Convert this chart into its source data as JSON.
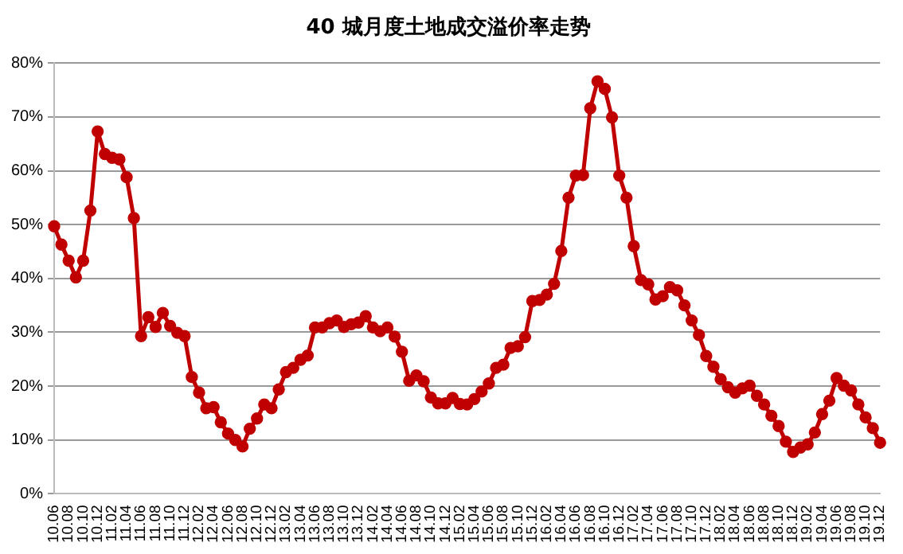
{
  "chart_data": {
    "type": "line",
    "title": "40 城月度土地成交溢价率走势",
    "categories": [
      "10.06",
      null,
      "10.08",
      null,
      "10.10",
      null,
      "10.12",
      null,
      "11.02",
      null,
      "11.04",
      null,
      "11.06",
      null,
      "11.08",
      null,
      "11.10",
      null,
      "11.12",
      null,
      "12.02",
      null,
      "12.04",
      null,
      "12.06",
      null,
      "12.08",
      null,
      "12.10",
      null,
      "12.12",
      null,
      "13.02",
      null,
      "13.04",
      null,
      "13.06",
      null,
      "13.08",
      null,
      "13.10",
      null,
      "13.12",
      null,
      "14.02",
      null,
      "14.04",
      null,
      "14.06",
      null,
      "14.08",
      null,
      "14.10",
      null,
      "14.12",
      null,
      "15.02",
      null,
      "15.04",
      null,
      "15.06",
      null,
      "15.08",
      null,
      "15.10",
      null,
      "15.12",
      null,
      "16.02",
      null,
      "16.04",
      null,
      "16.06",
      null,
      "16.08",
      null,
      "16.10",
      null,
      "16.12",
      null,
      "17.02",
      null,
      "17.04",
      null,
      "17.06",
      null,
      "17.08",
      null,
      "17.10",
      null,
      "17.12",
      null,
      "18.02",
      null,
      "18.04",
      null,
      "18.06",
      null,
      "18.08",
      null,
      "18.10",
      null,
      "18.12",
      null,
      "19.02",
      null,
      "19.04",
      null,
      "19.06",
      null,
      "19.08",
      null,
      "19.10",
      null,
      "19.12"
    ],
    "series": [
      {
        "color": "#c00000",
        "values": [
          49.7,
          46.3,
          43.3,
          40.2,
          43.3,
          52.6,
          67.3,
          63.1,
          62.4,
          62.1,
          58.8,
          51.2,
          29.3,
          32.8,
          31.0,
          33.6,
          31.2,
          29.9,
          29.3,
          21.7,
          18.8,
          15.9,
          16.1,
          13.3,
          11.2,
          10.0,
          8.8,
          12.1,
          14.0,
          16.6,
          15.9,
          19.4,
          22.6,
          23.4,
          24.9,
          25.7,
          30.9,
          30.9,
          31.7,
          32.2,
          31.0,
          31.5,
          31.8,
          33.0,
          30.9,
          30.2,
          30.9,
          29.2,
          26.4,
          21.0,
          22.0,
          20.9,
          17.9,
          16.8,
          16.8,
          17.8,
          16.7,
          16.6,
          17.6,
          19.0,
          20.5,
          23.4,
          24.0,
          27.1,
          27.4,
          29.1,
          35.8,
          36.0,
          37.0,
          39.0,
          45.1,
          55.0,
          59.1,
          59.2,
          71.6,
          76.6,
          75.2,
          69.9,
          59.1,
          55.0,
          46.0,
          39.7,
          38.9,
          36.1,
          36.7,
          38.4,
          37.8,
          35.0,
          32.2,
          29.5,
          25.6,
          23.6,
          21.3,
          19.8,
          18.8,
          19.6,
          20.1,
          18.2,
          16.6,
          14.5,
          12.6,
          9.7,
          7.8,
          8.6,
          9.2,
          11.4,
          14.8,
          17.3,
          21.5,
          20.1,
          19.2,
          16.6,
          14.2,
          12.2,
          9.5
        ]
      }
    ],
    "ylim": [
      0,
      80
    ],
    "yticks": [
      {
        "value": 0,
        "label": "0%"
      },
      {
        "value": 10,
        "label": "10%"
      },
      {
        "value": 20,
        "label": "20%"
      },
      {
        "value": 30,
        "label": "30%"
      },
      {
        "value": 40,
        "label": "40%"
      },
      {
        "value": 50,
        "label": "50%"
      },
      {
        "value": 60,
        "label": "60%"
      },
      {
        "value": 70,
        "label": "70%"
      },
      {
        "value": 80,
        "label": "80%"
      }
    ],
    "grid": "y",
    "legend": false,
    "marker": "circle",
    "line_style": "solid"
  }
}
